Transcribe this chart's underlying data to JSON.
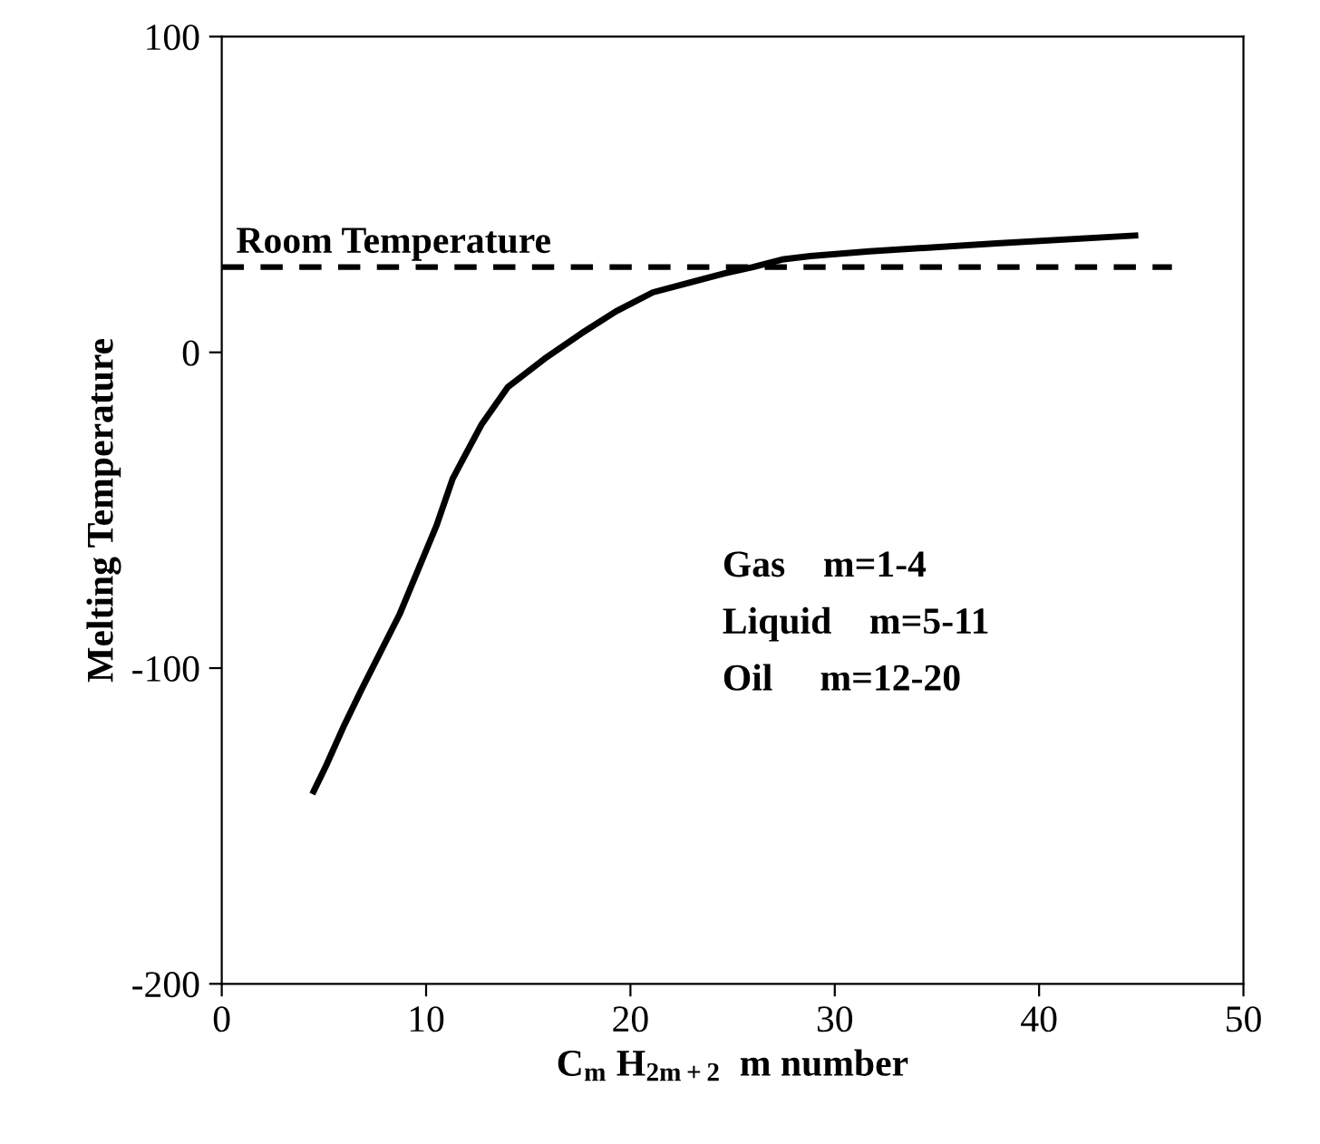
{
  "chart_data": {
    "type": "line",
    "xlabel": "C$_{m}$ H$_{2m+2}$  m number",
    "ylabel": "Melting Temperature",
    "xlim": [
      0,
      50
    ],
    "xticks": [
      0,
      10,
      20,
      30,
      40,
      50
    ],
    "ylim": [
      -200,
      100
    ],
    "yticks": [
      -200,
      -100,
      0,
      100
    ],
    "series": [
      {
        "color": "#000000",
        "x": [
          4.5,
          5.1,
          6.0,
          6.9,
          8.7,
          10.5,
          11.3,
          12.7,
          14.0,
          15.8,
          17.6,
          19.3,
          21.1,
          24.6,
          26.0,
          27.5,
          28.8,
          31.7,
          37.9,
          44.7
        ],
        "values": [
          -139,
          -131,
          -118,
          -106,
          -83,
          -55,
          -40,
          -23,
          -11,
          -2,
          6,
          13,
          19,
          25,
          27,
          29.5,
          30.5,
          32,
          34.5,
          37
        ]
      }
    ],
    "ref_lines": [
      {
        "axis": "y",
        "value": 27,
        "label": "Room Temperature",
        "line_style": "dashed",
        "color": "#000000"
      }
    ],
    "annotations": [
      "Gas    m=1-4",
      "Liquid    m=5-11",
      "Oil     m=12-20"
    ],
    "grid": false,
    "legend": false,
    "marker": "none",
    "line_style": "solid"
  }
}
